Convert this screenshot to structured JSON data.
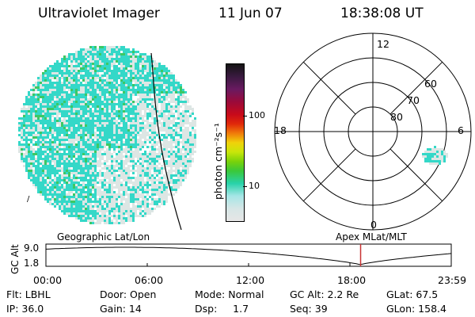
{
  "header": {
    "title": "Ultraviolet Imager",
    "date": "11 Jun 07",
    "time": "18:38:08 UT"
  },
  "colorbar": {
    "axis_label": "photon cm⁻²s⁻¹",
    "ticks": [
      "100",
      "10"
    ],
    "colors": [
      "#141414",
      "#3a1a40",
      "#6a1a60",
      "#9a0a3a",
      "#c80a1a",
      "#e0280a",
      "#f07a0a",
      "#f0d20a",
      "#c8e60a",
      "#7ad20a",
      "#3ac83a",
      "#28d2aa",
      "#a6e6e6",
      "#d6e6e6",
      "#e6e6e6"
    ]
  },
  "polar": {
    "clock_labels": [
      "12",
      "18",
      "6",
      "0"
    ],
    "lat_labels": [
      "60",
      "70",
      "80"
    ]
  },
  "timeline": {
    "y_axis_title": "GC Alt",
    "y_ticks": [
      "9.0",
      "1.8"
    ],
    "left_title": "Geographic Lat/Lon",
    "right_title": "Apex  MLat/MLT",
    "x_ticks": [
      "00:00",
      "06:00",
      "12:00",
      "18:00",
      "23:59"
    ],
    "current_marker_color": "#c83232"
  },
  "info": {
    "row1": [
      "Flt: LBHL",
      "Door: Open",
      "Mode: Normal",
      "GC Alt: 2.2 Re",
      "GLat:  67.5"
    ],
    "row2": [
      "IP: 36.0",
      "Gain: 14",
      "Dsp:     1.7",
      "Seq: 39",
      "GLon: 158.4"
    ]
  },
  "colors": {
    "aurora_cyan": "#34d8c8",
    "haze": "#dde6e4",
    "green": "#3cc864"
  }
}
